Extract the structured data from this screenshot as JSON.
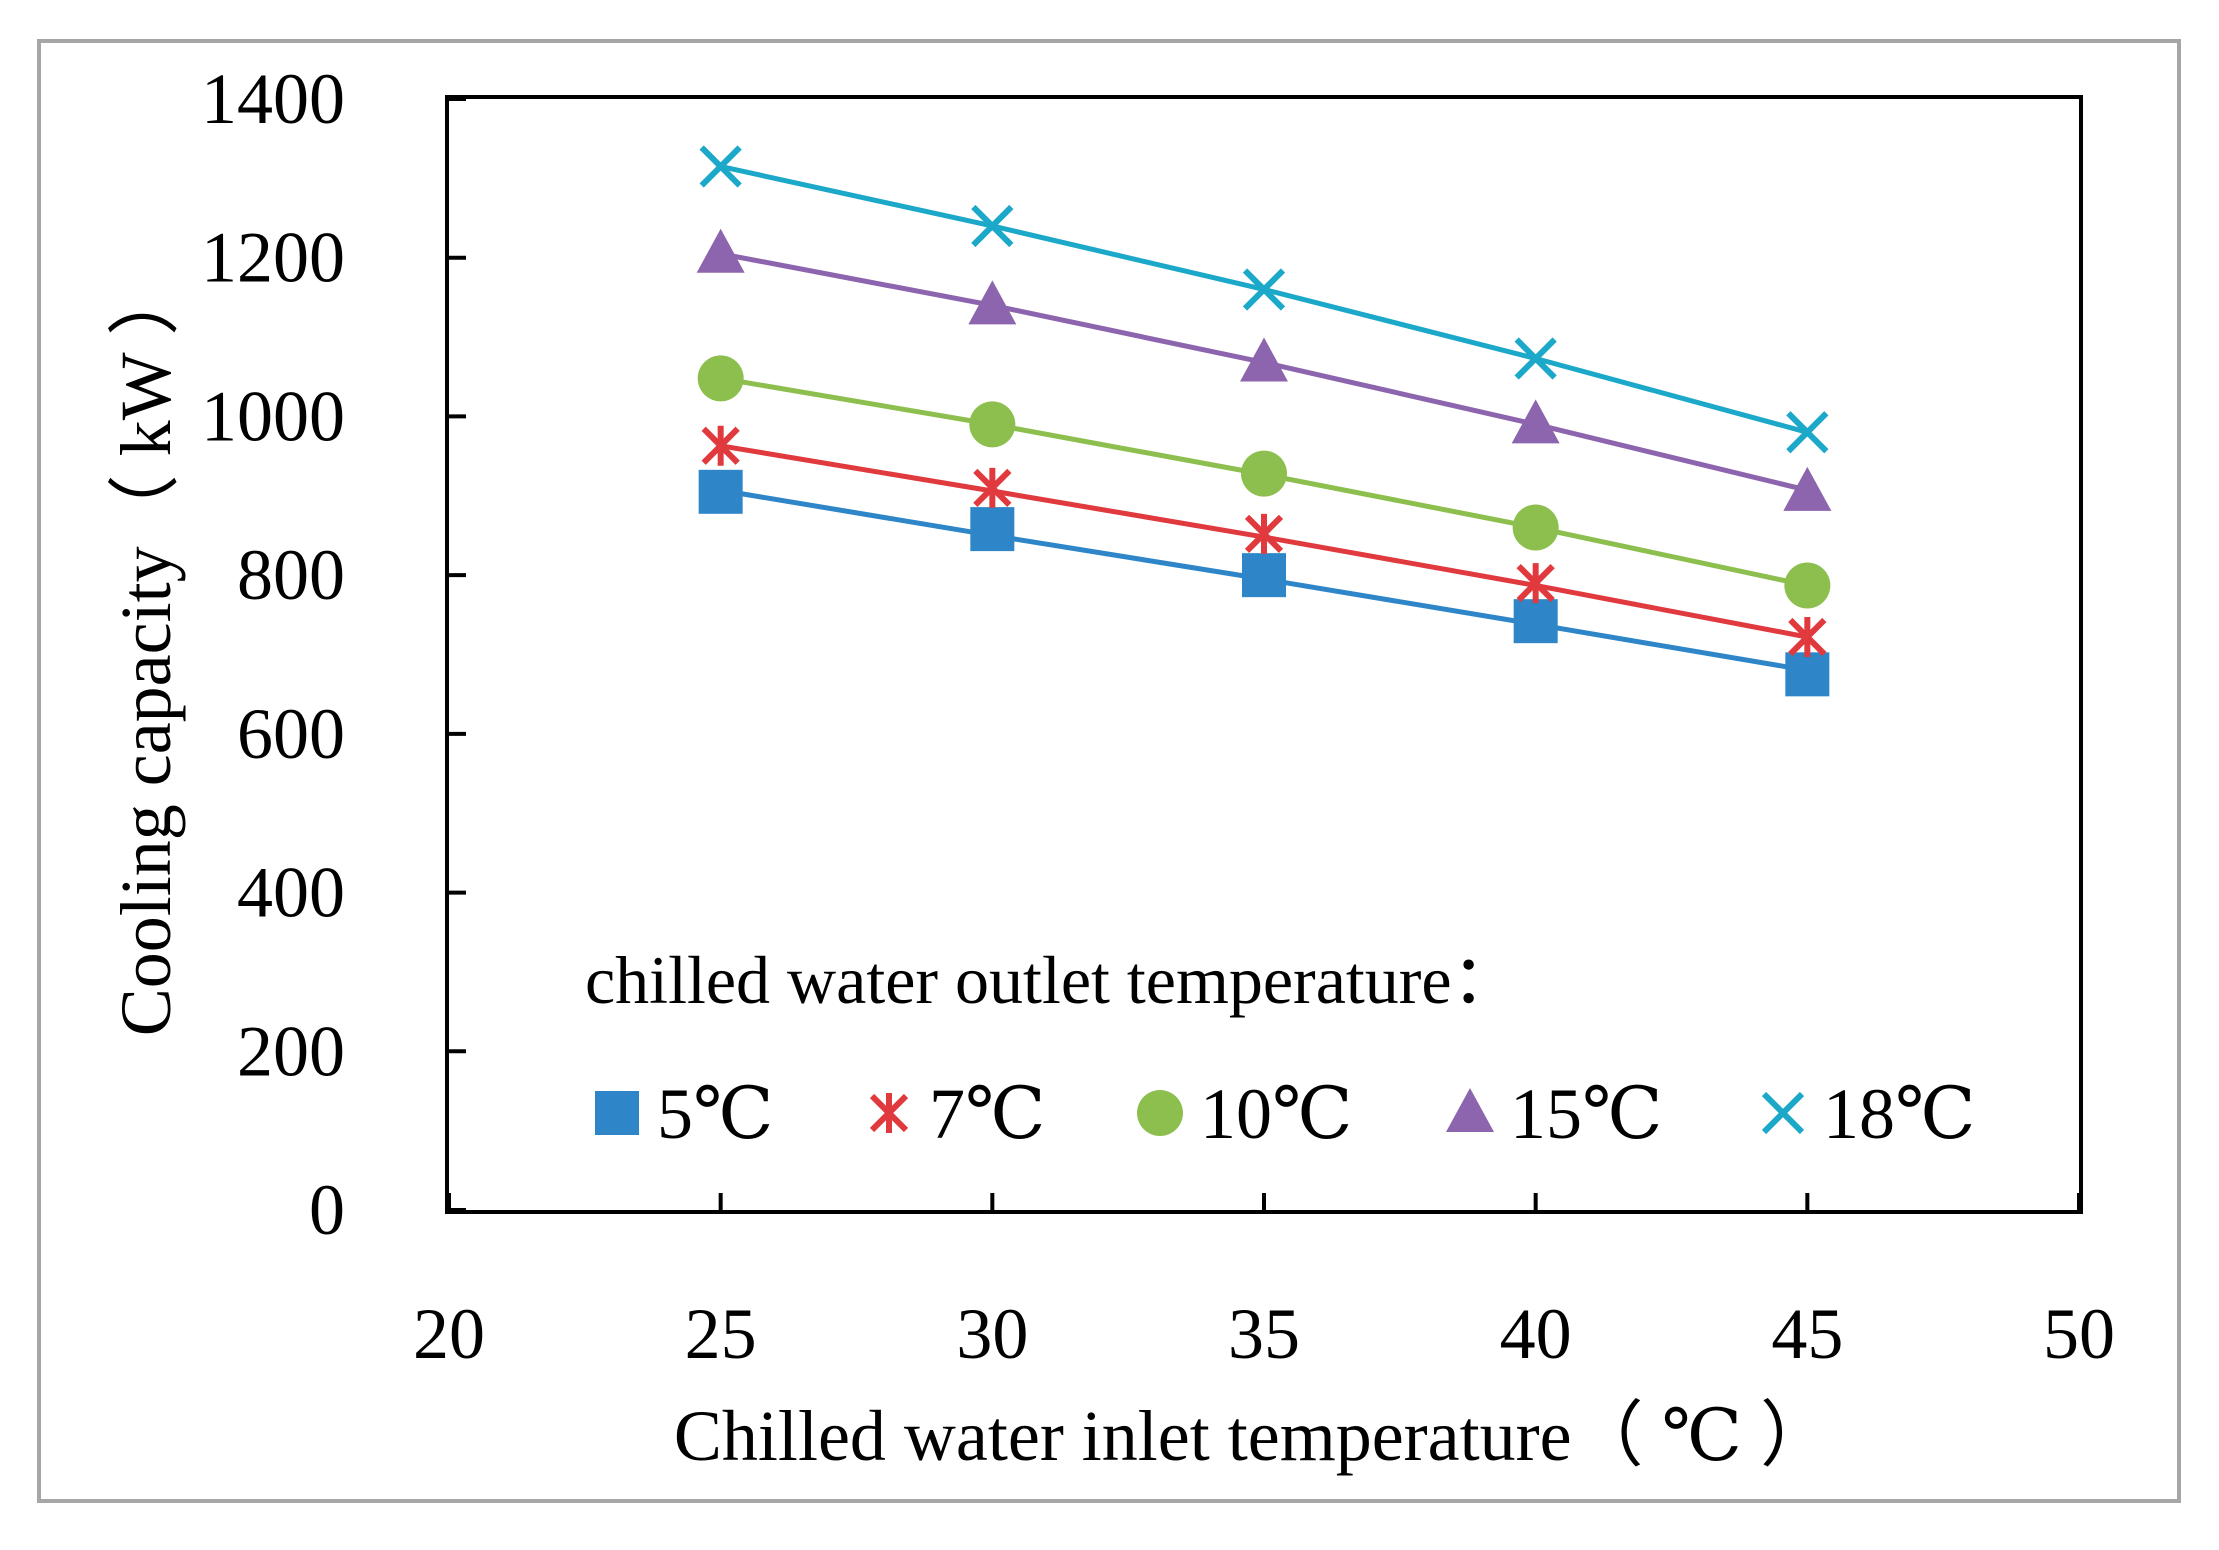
{
  "chart_data": {
    "type": "line",
    "title": "",
    "xlabel": "Chilled water inlet temperature（ ℃ ）",
    "ylabel": "Cooling capacity（ kW ）",
    "xlim": [
      20,
      50
    ],
    "ylim": [
      0,
      1400
    ],
    "x_ticks": [
      20,
      25,
      30,
      35,
      40,
      45,
      50
    ],
    "y_ticks": [
      0,
      200,
      400,
      600,
      800,
      1000,
      1200,
      1400
    ],
    "x": [
      25,
      30,
      35,
      40,
      45
    ],
    "grid": false,
    "legend_title": "chilled water outlet temperature：",
    "legend_position": "bottom-inside",
    "series": [
      {
        "name": "5℃",
        "color": "#2E86C8",
        "marker": "square",
        "values": [
          905,
          858,
          800,
          742,
          675
        ],
        "fit": [
          907,
          850,
          795,
          738,
          680
        ]
      },
      {
        "name": "7℃",
        "color": "#E03A3E",
        "marker": "asterisk",
        "values": [
          963,
          910,
          852,
          790,
          722
        ],
        "fit": [
          963,
          906,
          848,
          787,
          722
        ]
      },
      {
        "name": "10℃",
        "color": "#8DBF4E",
        "marker": "circle",
        "values": [
          1048,
          990,
          928,
          860,
          787
        ],
        "fit": [
          1048,
          990,
          927,
          860,
          787
        ]
      },
      {
        "name": "15℃",
        "color": "#8D65AE",
        "marker": "triangle",
        "values": [
          1205,
          1140,
          1068,
          990,
          905
        ],
        "fit": [
          1205,
          1140,
          1068,
          990,
          907
        ]
      },
      {
        "name": "18℃",
        "color": "#1CA8C9",
        "marker": "x",
        "values": [
          1315,
          1240,
          1160,
          1073,
          980
        ],
        "fit": [
          1315,
          1240,
          1160,
          1073,
          980
        ]
      }
    ]
  }
}
